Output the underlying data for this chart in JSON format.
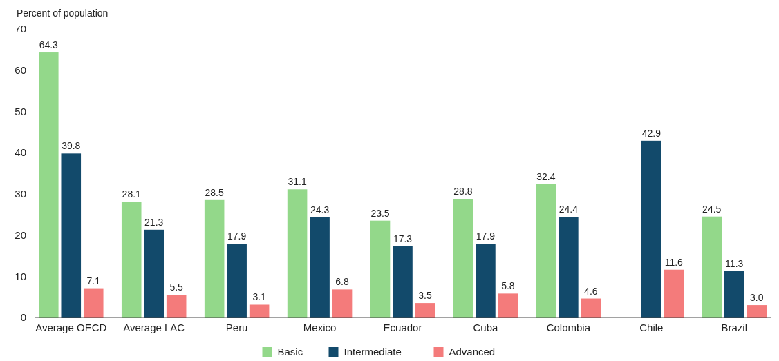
{
  "chart_data": {
    "type": "bar",
    "ylabel": "Percent of population",
    "categories": [
      "Average OECD",
      "Average LAC",
      "Peru",
      "Mexico",
      "Ecuador",
      "Cuba",
      "Colombia",
      "Chile",
      "Brazil"
    ],
    "series": [
      {
        "name": "Basic",
        "color": "#93d88a",
        "values": [
          64.3,
          28.1,
          28.5,
          31.1,
          23.5,
          28.8,
          32.4,
          null,
          24.5
        ],
        "value_labels": [
          "64.3",
          "28.1",
          "28.5",
          "31.1",
          "23.5",
          "28.8",
          "32.4",
          null,
          "24.5"
        ]
      },
      {
        "name": "Intermediate",
        "color": "#124a6b",
        "values": [
          39.8,
          21.3,
          17.9,
          24.3,
          17.3,
          17.9,
          24.4,
          42.9,
          11.3
        ],
        "value_labels": [
          "39.8",
          "21.3",
          "17.9",
          "24.3",
          "17.3",
          "17.9",
          "24.4",
          "42.9",
          "11.3"
        ]
      },
      {
        "name": "Advanced",
        "color": "#f47b7b",
        "values": [
          7.1,
          5.5,
          3.1,
          6.8,
          3.5,
          5.8,
          4.6,
          11.6,
          3.0
        ],
        "value_labels": [
          "7.1",
          "5.5",
          "3.1",
          "6.8",
          "3.5",
          "5.8",
          "4.6",
          "11.6",
          "3.0"
        ]
      }
    ],
    "ylim": [
      0,
      70
    ],
    "yticks": [
      0,
      10,
      20,
      30,
      40,
      50,
      60,
      70
    ],
    "grid": false,
    "legend": "bottom"
  }
}
